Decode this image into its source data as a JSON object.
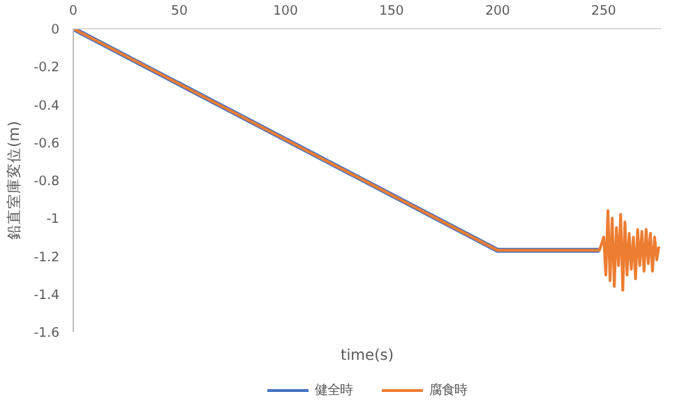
{
  "chart_data": {
    "type": "line",
    "xlabel": "time(s)",
    "ylabel": "鉛直室庫変位(m)",
    "xlim": [
      0,
      277
    ],
    "ylim": [
      -1.6,
      0
    ],
    "xticks": [
      0,
      50,
      100,
      150,
      200,
      250
    ],
    "yticks": [
      0,
      -0.2,
      -0.4,
      -0.6,
      -0.8,
      -1,
      -1.2,
      -1.4,
      -1.6
    ],
    "grid": false,
    "legend": "bottom",
    "marker": "none",
    "line_style": "solid",
    "series": [
      {
        "name": "健全時",
        "color": "#4472c4",
        "x": [
          0,
          200,
          248
        ],
        "values": [
          0,
          -1.17,
          -1.17
        ]
      },
      {
        "name": "腐食時",
        "color": "#ed7d31",
        "x": [
          0,
          200,
          248,
          250,
          251,
          252,
          253,
          254,
          255,
          256,
          257,
          258,
          259,
          260,
          261,
          262,
          263,
          264,
          265,
          266,
          267,
          268,
          269,
          270,
          271,
          272,
          273,
          274,
          275,
          276
        ],
        "values": [
          0,
          -1.17,
          -1.17,
          -1.1,
          -1.3,
          -0.96,
          -1.33,
          -1.0,
          -1.36,
          -1.05,
          -1.25,
          -0.98,
          -1.38,
          -1.02,
          -1.3,
          -1.08,
          -1.27,
          -1.1,
          -1.32,
          -1.06,
          -1.25,
          -1.07,
          -1.28,
          -1.06,
          -1.24,
          -1.08,
          -1.28,
          -1.1,
          -1.22,
          -1.15
        ]
      }
    ]
  }
}
